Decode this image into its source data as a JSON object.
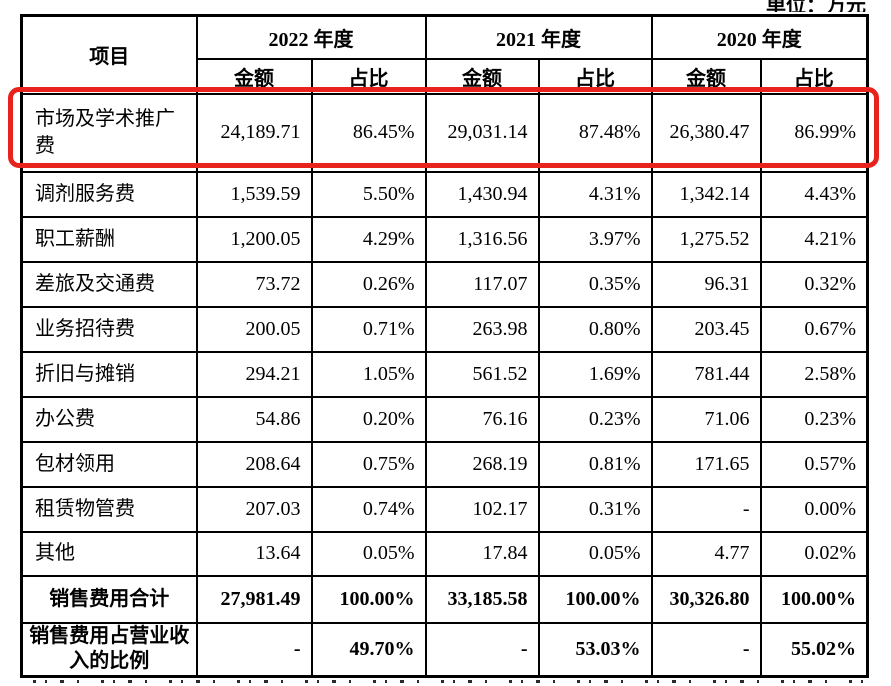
{
  "unit_label": "单位：万元",
  "highlight_color": "#e8231d",
  "table": {
    "headers": {
      "item": "项目",
      "amount": "金额",
      "ratio": "占比"
    },
    "year_groups": [
      "2022 年度",
      "2021 年度",
      "2020 年度"
    ],
    "rows": [
      {
        "label": "市场及学术推广费",
        "values": [
          "24,189.71",
          "86.45%",
          "29,031.14",
          "87.48%",
          "26,380.47",
          "86.99%"
        ],
        "highlighted": true
      },
      {
        "label": "调剂服务费",
        "values": [
          "1,539.59",
          "5.50%",
          "1,430.94",
          "4.31%",
          "1,342.14",
          "4.43%"
        ]
      },
      {
        "label": "职工薪酬",
        "values": [
          "1,200.05",
          "4.29%",
          "1,316.56",
          "3.97%",
          "1,275.52",
          "4.21%"
        ]
      },
      {
        "label": "差旅及交通费",
        "values": [
          "73.72",
          "0.26%",
          "117.07",
          "0.35%",
          "96.31",
          "0.32%"
        ]
      },
      {
        "label": "业务招待费",
        "values": [
          "200.05",
          "0.71%",
          "263.98",
          "0.80%",
          "203.45",
          "0.67%"
        ]
      },
      {
        "label": "折旧与摊销",
        "values": [
          "294.21",
          "1.05%",
          "561.52",
          "1.69%",
          "781.44",
          "2.58%"
        ]
      },
      {
        "label": "办公费",
        "values": [
          "54.86",
          "0.20%",
          "76.16",
          "0.23%",
          "71.06",
          "0.23%"
        ]
      },
      {
        "label": "包材领用",
        "values": [
          "208.64",
          "0.75%",
          "268.19",
          "0.81%",
          "171.65",
          "0.57%"
        ]
      },
      {
        "label": "租赁物管费",
        "values": [
          "207.03",
          "0.74%",
          "102.17",
          "0.31%",
          "-",
          "0.00%"
        ]
      },
      {
        "label": "其他",
        "values": [
          "13.64",
          "0.05%",
          "17.84",
          "0.05%",
          "4.77",
          "0.02%"
        ]
      },
      {
        "label": "销售费用合计",
        "values": [
          "27,981.49",
          "100.00%",
          "33,185.58",
          "100.00%",
          "30,326.80",
          "100.00%"
        ],
        "bold": true,
        "center": true
      },
      {
        "label": "销售费用占营业收入的比例",
        "values": [
          "-",
          "49.70%",
          "-",
          "53.03%",
          "-",
          "55.02%"
        ],
        "bold": true,
        "center": true
      }
    ]
  }
}
